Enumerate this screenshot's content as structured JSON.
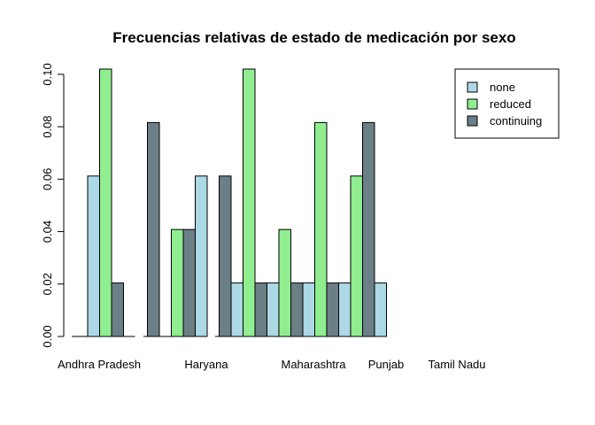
{
  "chart_data": {
    "type": "bar",
    "title": "Frecuencias relativas de estado de medicación por sexo",
    "xlabel": "",
    "ylabel": "",
    "ylim": [
      0,
      0.102
    ],
    "yticks": [
      "0.00",
      "0.02",
      "0.04",
      "0.06",
      "0.08",
      "0.10"
    ],
    "ytick_values": [
      0,
      0.02,
      0.04,
      0.06,
      0.08,
      0.1
    ],
    "legend_placement": "top-right",
    "grid": false,
    "printed_labels": [
      "Andhra Pradesh",
      "Haryana",
      "Maharashtra",
      "Punjab",
      "Tamil Nadu"
    ],
    "series": [
      {
        "name": "none",
        "color": "#add8e6"
      },
      {
        "name": "reduced",
        "color": "#90ee90"
      },
      {
        "name": "continuing",
        "color": "#6b7f87"
      }
    ],
    "groups": [
      {
        "bars": [
          {
            "series": 0,
            "value": 0.0612
          },
          {
            "series": 1,
            "value": 0.102
          },
          {
            "series": 2,
            "value": 0.0204
          }
        ]
      },
      {
        "bars": [
          {
            "series": 0,
            "value": 0
          },
          {
            "series": 1,
            "value": 0
          },
          {
            "series": 2,
            "value": 0.0816
          }
        ]
      },
      {
        "bars": [
          {
            "series": 0,
            "value": 0
          },
          {
            "series": 1,
            "value": 0.0408
          },
          {
            "series": 2,
            "value": 0.0408
          }
        ]
      },
      {
        "bars": [
          {
            "series": 0,
            "value": 0.0612
          },
          {
            "series": 1,
            "value": 0
          },
          {
            "series": 2,
            "value": 0.0612
          }
        ]
      },
      {
        "bars": [
          {
            "series": 0,
            "value": 0.0204
          },
          {
            "series": 1,
            "value": 0.102
          },
          {
            "series": 2,
            "value": 0.0204
          }
        ]
      },
      {
        "bars": [
          {
            "series": 0,
            "value": 0.0204
          },
          {
            "series": 1,
            "value": 0.0408
          },
          {
            "series": 2,
            "value": 0.0204
          }
        ]
      },
      {
        "bars": [
          {
            "series": 0,
            "value": 0.0204
          },
          {
            "series": 1,
            "value": 0.0816
          },
          {
            "series": 2,
            "value": 0.0204
          }
        ]
      },
      {
        "bars": [
          {
            "series": 0,
            "value": 0.0204
          },
          {
            "series": 1,
            "value": 0.0612
          },
          {
            "series": 2,
            "value": 0.0816
          }
        ]
      },
      {
        "bars": [
          {
            "series": 0,
            "value": 0.0204
          },
          {
            "series": 1,
            "value": 0
          },
          {
            "series": 2,
            "value": 0
          }
        ]
      }
    ]
  }
}
